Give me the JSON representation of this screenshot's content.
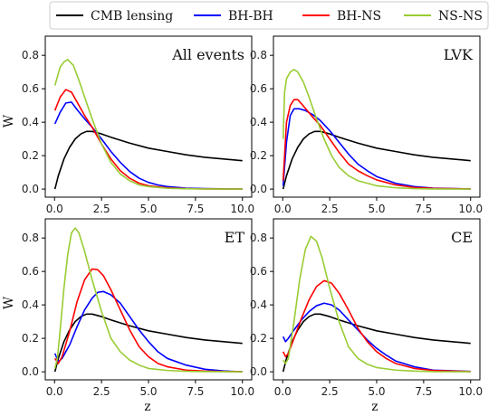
{
  "chart_data": {
    "type": "line",
    "legend": {
      "placement": "top",
      "entries": [
        {
          "name": "CMB lensing",
          "color": "#000000"
        },
        {
          "name": "BH-BH",
          "color": "#0000ff"
        },
        {
          "name": "BH-NS",
          "color": "#ff0000"
        },
        {
          "name": "NS-NS",
          "color": "#99cc33"
        }
      ]
    },
    "xlabel": "z",
    "ylabel": "W",
    "xlim": [
      0,
      10
    ],
    "xticks": [
      "0.0",
      "2.5",
      "5.0",
      "7.5",
      "10.0"
    ],
    "panels": [
      {
        "title": "All events",
        "ylim": [
          0,
          0.9
        ],
        "yticks": [
          "0.0",
          "0.2",
          "0.4",
          "0.6",
          "0.8"
        ],
        "series": [
          {
            "name": "CMB lensing",
            "x": [
              0.02,
              0.2,
              0.5,
              0.8,
              1.1,
              1.4,
              1.7,
              2.0,
              2.5,
              3.0,
              4.0,
              5.0,
              6.0,
              7.0,
              8.0,
              9.0,
              10.0
            ],
            "y": [
              0.0,
              0.08,
              0.18,
              0.25,
              0.3,
              0.33,
              0.345,
              0.345,
              0.33,
              0.31,
              0.275,
              0.245,
              0.225,
              0.205,
              0.19,
              0.18,
              0.17
            ]
          },
          {
            "name": "BH-BH",
            "x": [
              0.02,
              0.3,
              0.6,
              0.9,
              1.2,
              1.6,
              2.0,
              2.5,
              3.0,
              3.5,
              4.0,
              4.5,
              5.0,
              5.5,
              6.0,
              7.0,
              8.0,
              10.0
            ],
            "y": [
              0.39,
              0.46,
              0.515,
              0.52,
              0.475,
              0.42,
              0.37,
              0.3,
              0.225,
              0.16,
              0.105,
              0.065,
              0.04,
              0.025,
              0.015,
              0.006,
              0.003,
              0.0
            ]
          },
          {
            "name": "BH-NS",
            "x": [
              0.02,
              0.3,
              0.6,
              0.9,
              1.2,
              1.6,
              2.0,
              2.5,
              3.0,
              3.5,
              4.0,
              4.5,
              5.0,
              6.0,
              7.0,
              8.0,
              10.0
            ],
            "y": [
              0.47,
              0.55,
              0.595,
              0.58,
              0.52,
              0.44,
              0.37,
              0.27,
              0.18,
              0.11,
              0.065,
              0.035,
              0.02,
              0.008,
              0.003,
              0.001,
              0.0
            ]
          },
          {
            "name": "NS-NS",
            "x": [
              0.02,
              0.3,
              0.5,
              0.7,
              1.0,
              1.3,
              1.6,
              2.0,
              2.5,
              3.0,
              3.5,
              4.0,
              4.5,
              5.0,
              6.0,
              7.0,
              8.0,
              10.0
            ],
            "y": [
              0.62,
              0.73,
              0.76,
              0.775,
              0.74,
              0.65,
              0.55,
              0.42,
              0.27,
              0.16,
              0.09,
              0.05,
              0.025,
              0.015,
              0.005,
              0.002,
              0.001,
              0.0
            ]
          }
        ]
      },
      {
        "title": "LVK",
        "ylim": [
          0,
          0.9
        ],
        "yticks": [
          "0.0",
          "0.2",
          "0.4",
          "0.6",
          "0.8"
        ],
        "series": [
          {
            "name": "CMB lensing",
            "x": [
              0.02,
              0.2,
              0.5,
              0.8,
              1.1,
              1.4,
              1.7,
              2.0,
              2.5,
              3.0,
              4.0,
              5.0,
              6.0,
              7.0,
              8.0,
              9.0,
              10.0
            ],
            "y": [
              0.0,
              0.08,
              0.18,
              0.25,
              0.3,
              0.33,
              0.345,
              0.345,
              0.33,
              0.31,
              0.275,
              0.245,
              0.225,
              0.205,
              0.19,
              0.18,
              0.17
            ]
          },
          {
            "name": "BH-BH",
            "x": [
              0.02,
              0.2,
              0.4,
              0.6,
              0.9,
              1.2,
              1.6,
              2.0,
              2.5,
              3.0,
              3.5,
              4.0,
              4.5,
              5.0,
              6.0,
              7.0,
              8.0,
              10.0
            ],
            "y": [
              0.02,
              0.28,
              0.44,
              0.48,
              0.48,
              0.47,
              0.445,
              0.41,
              0.35,
              0.28,
              0.21,
              0.15,
              0.11,
              0.075,
              0.035,
              0.015,
              0.006,
              0.001
            ]
          },
          {
            "name": "BH-NS",
            "x": [
              0.02,
              0.2,
              0.4,
              0.6,
              0.8,
              1.0,
              1.3,
              1.6,
              2.0,
              2.5,
              3.0,
              3.5,
              4.0,
              4.5,
              5.0,
              6.0,
              7.0,
              8.0,
              10.0
            ],
            "y": [
              0.05,
              0.4,
              0.5,
              0.535,
              0.535,
              0.51,
              0.47,
              0.43,
              0.38,
              0.3,
              0.22,
              0.15,
              0.11,
              0.08,
              0.055,
              0.025,
              0.01,
              0.004,
              0.001
            ]
          },
          {
            "name": "NS-NS",
            "x": [
              0.02,
              0.1,
              0.2,
              0.4,
              0.6,
              0.8,
              1.1,
              1.4,
              1.8,
              2.2,
              2.6,
              3.0,
              3.5,
              4.0,
              5.0,
              6.0,
              7.0,
              8.0,
              10.0
            ],
            "y": [
              0.3,
              0.58,
              0.66,
              0.7,
              0.715,
              0.7,
              0.64,
              0.55,
              0.42,
              0.3,
              0.2,
              0.13,
              0.08,
              0.05,
              0.02,
              0.008,
              0.003,
              0.001,
              0.0
            ]
          }
        ]
      },
      {
        "title": "ET",
        "ylim": [
          0,
          0.9
        ],
        "yticks": [
          "0.0",
          "0.2",
          "0.4",
          "0.6",
          "0.8"
        ],
        "series": [
          {
            "name": "CMB lensing",
            "x": [
              0.02,
              0.2,
              0.5,
              0.8,
              1.1,
              1.4,
              1.7,
              2.0,
              2.5,
              3.0,
              4.0,
              5.0,
              6.0,
              7.0,
              8.0,
              9.0,
              10.0
            ],
            "y": [
              0.0,
              0.08,
              0.18,
              0.25,
              0.3,
              0.33,
              0.345,
              0.345,
              0.33,
              0.31,
              0.275,
              0.245,
              0.225,
              0.205,
              0.19,
              0.18,
              0.17
            ]
          },
          {
            "name": "BH-BH",
            "x": [
              0.02,
              0.2,
              0.4,
              0.8,
              1.2,
              1.6,
              2.0,
              2.3,
              2.6,
              3.0,
              3.5,
              4.0,
              4.5,
              5.0,
              5.5,
              6.0,
              7.0,
              8.0,
              9.0,
              10.0
            ],
            "y": [
              0.11,
              0.06,
              0.08,
              0.16,
              0.27,
              0.37,
              0.44,
              0.475,
              0.48,
              0.46,
              0.41,
              0.33,
              0.25,
              0.18,
              0.12,
              0.08,
              0.04,
              0.015,
              0.005,
              0.0
            ]
          },
          {
            "name": "BH-NS",
            "x": [
              0.02,
              0.2,
              0.4,
              0.8,
              1.2,
              1.6,
              2.0,
              2.3,
              2.6,
              3.0,
              3.5,
              4.0,
              4.5,
              5.0,
              5.5,
              6.0,
              7.0,
              8.0,
              10.0
            ],
            "y": [
              0.08,
              0.05,
              0.09,
              0.24,
              0.42,
              0.55,
              0.615,
              0.61,
              0.575,
              0.49,
              0.37,
              0.25,
              0.15,
              0.09,
              0.05,
              0.03,
              0.01,
              0.004,
              0.0
            ]
          },
          {
            "name": "NS-NS",
            "x": [
              0.02,
              0.15,
              0.3,
              0.5,
              0.7,
              0.9,
              1.1,
              1.3,
              1.6,
              2.0,
              2.5,
              3.0,
              3.5,
              4.0,
              4.5,
              5.0,
              6.0,
              7.0,
              8.0,
              10.0
            ],
            "y": [
              0.02,
              0.08,
              0.25,
              0.5,
              0.7,
              0.83,
              0.86,
              0.83,
              0.72,
              0.55,
              0.36,
              0.2,
              0.12,
              0.07,
              0.04,
              0.02,
              0.008,
              0.003,
              0.001,
              0.0
            ]
          }
        ]
      },
      {
        "title": "CE",
        "ylim": [
          0,
          0.9
        ],
        "yticks": [
          "0.0",
          "0.2",
          "0.4",
          "0.6",
          "0.8"
        ],
        "series": [
          {
            "name": "CMB lensing",
            "x": [
              0.02,
              0.2,
              0.5,
              0.8,
              1.1,
              1.4,
              1.7,
              2.0,
              2.5,
              3.0,
              4.0,
              5.0,
              6.0,
              7.0,
              8.0,
              9.0,
              10.0
            ],
            "y": [
              0.0,
              0.08,
              0.18,
              0.25,
              0.3,
              0.33,
              0.345,
              0.345,
              0.33,
              0.31,
              0.275,
              0.245,
              0.225,
              0.205,
              0.19,
              0.18,
              0.17
            ]
          },
          {
            "name": "BH-BH",
            "x": [
              0.02,
              0.15,
              0.3,
              0.6,
              1.0,
              1.4,
              1.8,
              2.2,
              2.6,
              3.0,
              3.5,
              4.0,
              4.5,
              5.0,
              5.5,
              6.0,
              7.0,
              8.0,
              10.0
            ],
            "y": [
              0.21,
              0.18,
              0.2,
              0.25,
              0.31,
              0.36,
              0.395,
              0.41,
              0.4,
              0.37,
              0.31,
              0.25,
              0.19,
              0.14,
              0.1,
              0.065,
              0.03,
              0.01,
              0.002
            ]
          },
          {
            "name": "BH-NS",
            "x": [
              0.02,
              0.15,
              0.3,
              0.6,
              1.0,
              1.4,
              1.8,
              2.2,
              2.6,
              3.0,
              3.5,
              4.0,
              4.5,
              5.0,
              5.5,
              6.0,
              7.0,
              8.0,
              10.0
            ],
            "y": [
              0.12,
              0.09,
              0.11,
              0.2,
              0.32,
              0.43,
              0.51,
              0.545,
              0.53,
              0.47,
              0.37,
              0.26,
              0.18,
              0.12,
              0.08,
              0.05,
              0.02,
              0.008,
              0.001
            ]
          },
          {
            "name": "NS-NS",
            "x": [
              0.02,
              0.15,
              0.3,
              0.6,
              0.9,
              1.2,
              1.5,
              1.8,
              2.1,
              2.5,
              3.0,
              3.5,
              4.0,
              4.5,
              5.0,
              6.0,
              7.0,
              8.0,
              10.0
            ],
            "y": [
              0.07,
              0.05,
              0.08,
              0.3,
              0.55,
              0.73,
              0.81,
              0.78,
              0.68,
              0.5,
              0.3,
              0.15,
              0.08,
              0.045,
              0.025,
              0.01,
              0.004,
              0.001,
              0.0
            ]
          }
        ]
      }
    ]
  }
}
